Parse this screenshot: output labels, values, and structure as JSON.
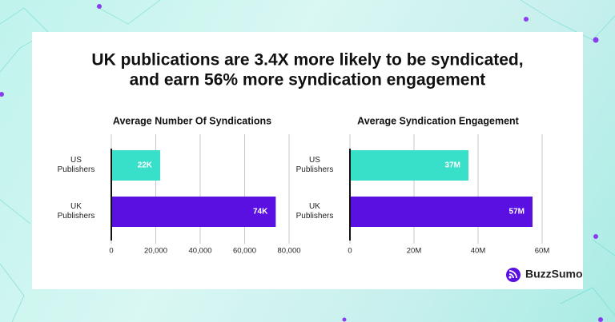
{
  "title_lines": [
    "UK publications are 3.4X more likely to be syndicated,",
    "and earn 56% more syndication engagement"
  ],
  "brand": "BuzzSumo",
  "chart_data": [
    {
      "type": "bar",
      "orientation": "horizontal",
      "title": "Average Number Of Syndications",
      "categories": [
        "US Publishers",
        "UK Publishers"
      ],
      "values": [
        22000,
        74000
      ],
      "value_labels": [
        "22K",
        "74K"
      ],
      "colors": [
        "#38e0c9",
        "#5a10e0"
      ],
      "xlim": [
        0,
        80000
      ],
      "xticks": [
        0,
        {
          "value": 20000,
          "label": "20,000"
        },
        {
          "value": 40000,
          "label": "40,000"
        },
        {
          "value": 60000,
          "label": "60,000"
        },
        {
          "value": 80000,
          "label": "80,000"
        }
      ],
      "grid": true
    },
    {
      "type": "bar",
      "orientation": "horizontal",
      "title": "Average Syndication Engagement",
      "categories": [
        "US Publishers",
        "UK Publishers"
      ],
      "values": [
        37000000,
        57000000
      ],
      "value_labels": [
        "37M",
        "57M"
      ],
      "colors": [
        "#38e0c9",
        "#5a10e0"
      ],
      "xlim": [
        0,
        60000000
      ],
      "xticks": [
        0,
        {
          "value": 20000000,
          "label": "20M"
        },
        {
          "value": 40000000,
          "label": "40M"
        },
        {
          "value": 60000000,
          "label": "60M"
        }
      ],
      "grid": true
    }
  ]
}
